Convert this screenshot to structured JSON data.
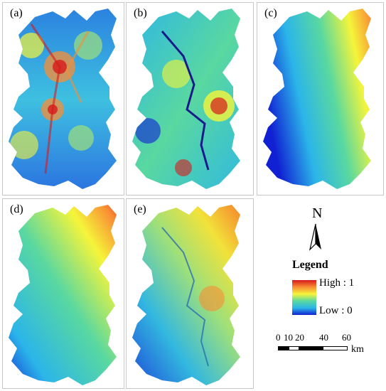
{
  "panels": {
    "a": {
      "label": "(a)"
    },
    "b": {
      "label": "(b)"
    },
    "c": {
      "label": "(c)"
    },
    "d": {
      "label": "(d)"
    },
    "e": {
      "label": "(e)"
    }
  },
  "north_arrow": {
    "letter": "N"
  },
  "legend": {
    "title": "Legend",
    "high": "High : 1",
    "low": "Low : 0",
    "colors": [
      "#d7191c",
      "#f98e34",
      "#f5f53a",
      "#59d8a0",
      "#2bb5e9",
      "#1020d2"
    ]
  },
  "scale_bar": {
    "ticks": [
      "0",
      "10",
      "20",
      "40",
      "60"
    ],
    "unit": "km"
  }
}
